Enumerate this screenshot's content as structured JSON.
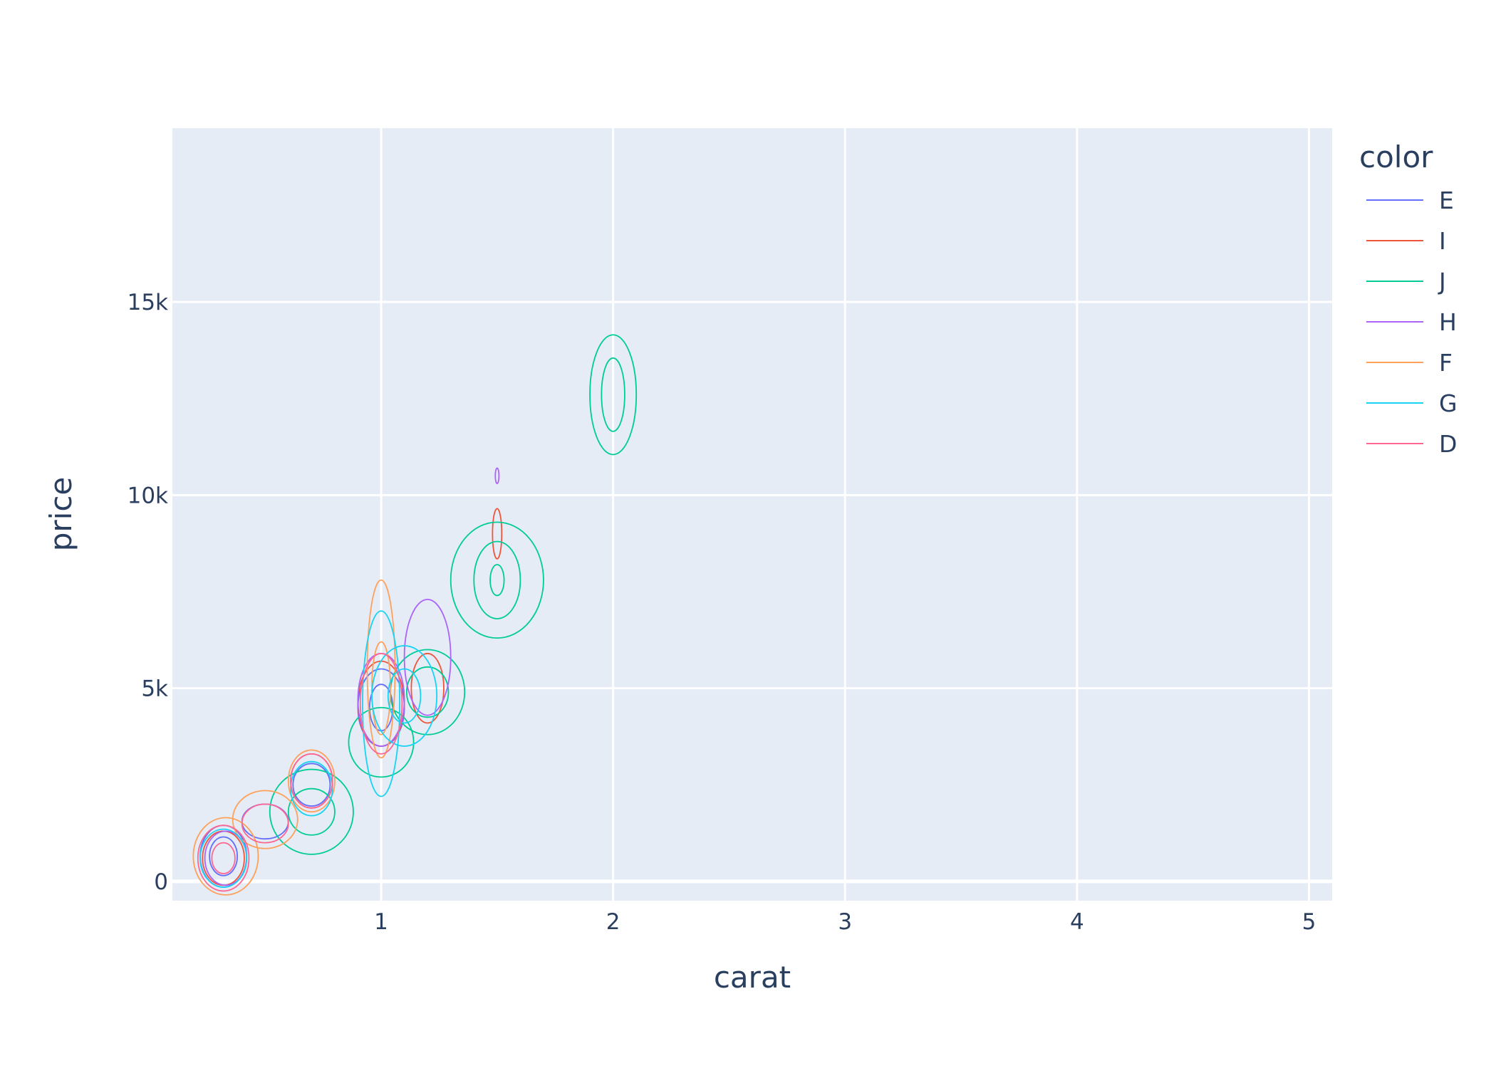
{
  "chart_data": {
    "type": "contour",
    "xlabel": "carat",
    "ylabel": "price",
    "xlim": [
      0.1,
      5.1
    ],
    "ylim": [
      -500,
      19500
    ],
    "xticks": [
      1,
      2,
      3,
      4,
      5
    ],
    "xtick_labels": [
      "1",
      "2",
      "3",
      "4",
      "5"
    ],
    "yticks": [
      0,
      5000,
      10000,
      15000
    ],
    "ytick_labels": [
      "0",
      "5k",
      "10k",
      "15k"
    ],
    "grid": true,
    "legend": {
      "title": "color",
      "placement": "right"
    },
    "series": [
      {
        "name": "E",
        "color": "#636efa",
        "contours": [
          {
            "cx": 0.32,
            "cy": 650,
            "rx": 0.1,
            "ry": 800
          },
          {
            "cx": 0.32,
            "cy": 650,
            "rx": 0.06,
            "ry": 500
          },
          {
            "cx": 0.5,
            "cy": 1550,
            "rx": 0.1,
            "ry": 450
          },
          {
            "cx": 0.7,
            "cy": 2500,
            "rx": 0.08,
            "ry": 550
          },
          {
            "cx": 1.0,
            "cy": 4500,
            "rx": 0.1,
            "ry": 1000
          },
          {
            "cx": 1.0,
            "cy": 4500,
            "rx": 0.05,
            "ry": 600
          }
        ]
      },
      {
        "name": "I",
        "color": "#ef553b",
        "contours": [
          {
            "cx": 0.32,
            "cy": 600,
            "rx": 0.09,
            "ry": 700
          },
          {
            "cx": 0.7,
            "cy": 2600,
            "rx": 0.09,
            "ry": 700
          },
          {
            "cx": 1.0,
            "cy": 4600,
            "rx": 0.1,
            "ry": 1100
          },
          {
            "cx": 1.5,
            "cy": 9000,
            "rx": 0.02,
            "ry": 650
          },
          {
            "cx": 1.2,
            "cy": 5000,
            "rx": 0.07,
            "ry": 900
          }
        ]
      },
      {
        "name": "J",
        "color": "#00cc96",
        "contours": [
          {
            "cx": 0.7,
            "cy": 1800,
            "rx": 0.18,
            "ry": 1100
          },
          {
            "cx": 0.7,
            "cy": 1800,
            "rx": 0.1,
            "ry": 600
          },
          {
            "cx": 1.0,
            "cy": 3600,
            "rx": 0.14,
            "ry": 900
          },
          {
            "cx": 1.2,
            "cy": 4900,
            "rx": 0.16,
            "ry": 1100
          },
          {
            "cx": 1.2,
            "cy": 4900,
            "rx": 0.09,
            "ry": 650
          },
          {
            "cx": 1.5,
            "cy": 7800,
            "rx": 0.2,
            "ry": 1500
          },
          {
            "cx": 1.5,
            "cy": 7800,
            "rx": 0.1,
            "ry": 1000
          },
          {
            "cx": 1.5,
            "cy": 7800,
            "rx": 0.03,
            "ry": 400
          },
          {
            "cx": 2.0,
            "cy": 12600,
            "rx": 0.1,
            "ry": 1550
          },
          {
            "cx": 2.0,
            "cy": 12600,
            "rx": 0.05,
            "ry": 950
          }
        ]
      },
      {
        "name": "H",
        "color": "#ab63fa",
        "contours": [
          {
            "cx": 0.33,
            "cy": 600,
            "rx": 0.09,
            "ry": 700
          },
          {
            "cx": 1.0,
            "cy": 4700,
            "rx": 0.1,
            "ry": 1200
          },
          {
            "cx": 1.2,
            "cy": 5800,
            "rx": 0.1,
            "ry": 1500
          },
          {
            "cx": 1.5,
            "cy": 10500,
            "rx": 0.008,
            "ry": 200
          }
        ]
      },
      {
        "name": "F",
        "color": "#ffa15a",
        "contours": [
          {
            "cx": 0.33,
            "cy": 650,
            "rx": 0.14,
            "ry": 1000
          },
          {
            "cx": 0.5,
            "cy": 1600,
            "rx": 0.14,
            "ry": 750
          },
          {
            "cx": 0.7,
            "cy": 2600,
            "rx": 0.1,
            "ry": 800
          },
          {
            "cx": 1.0,
            "cy": 5500,
            "rx": 0.06,
            "ry": 2300
          },
          {
            "cx": 1.0,
            "cy": 5000,
            "rx": 0.04,
            "ry": 1200
          }
        ]
      },
      {
        "name": "G",
        "color": "#19d3f3",
        "contours": [
          {
            "cx": 0.32,
            "cy": 600,
            "rx": 0.1,
            "ry": 750
          },
          {
            "cx": 0.7,
            "cy": 2400,
            "rx": 0.09,
            "ry": 700
          },
          {
            "cx": 1.0,
            "cy": 4600,
            "rx": 0.08,
            "ry": 2400
          },
          {
            "cx": 1.1,
            "cy": 4800,
            "rx": 0.14,
            "ry": 1300
          },
          {
            "cx": 1.1,
            "cy": 4800,
            "rx": 0.07,
            "ry": 700
          }
        ]
      },
      {
        "name": "D",
        "color": "#ff6692",
        "contours": [
          {
            "cx": 0.32,
            "cy": 600,
            "rx": 0.11,
            "ry": 850
          },
          {
            "cx": 0.32,
            "cy": 600,
            "rx": 0.05,
            "ry": 400
          },
          {
            "cx": 0.5,
            "cy": 1500,
            "rx": 0.1,
            "ry": 500
          },
          {
            "cx": 0.7,
            "cy": 2600,
            "rx": 0.09,
            "ry": 700
          },
          {
            "cx": 1.0,
            "cy": 4600,
            "rx": 0.09,
            "ry": 1300
          }
        ]
      }
    ]
  }
}
